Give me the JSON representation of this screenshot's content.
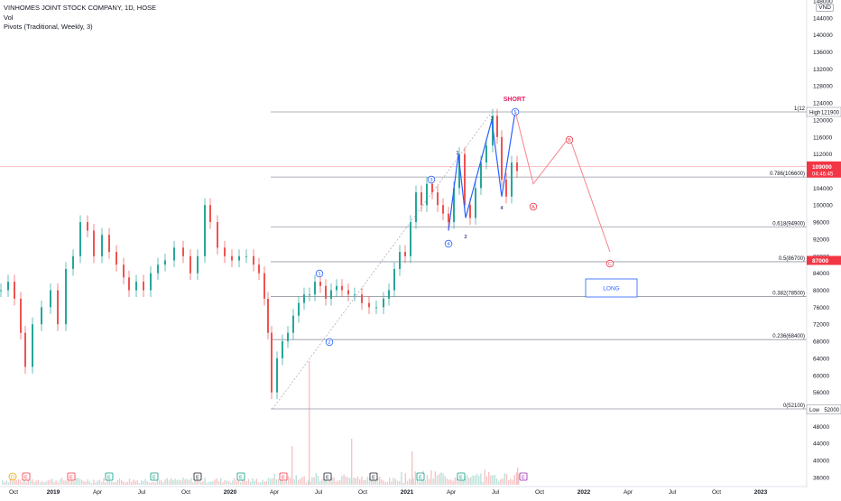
{
  "header": {
    "title": "VINHOMES JOINT STOCK COMPANY, 1D, HOSE",
    "vol_label": "Vol",
    "indicator_label": "Pivots (Traditional, Weekly, 3)",
    "currency": "VND"
  },
  "chart_data": {
    "type": "candlestick",
    "title": "VINHOMES JOINT STOCK COMPANY, 1D, HOSE",
    "currency": "VND",
    "y_ticks": [
      36000,
      40000,
      44000,
      48000,
      52000,
      56000,
      60000,
      64000,
      68000,
      72000,
      76000,
      80000,
      84000,
      88000,
      92000,
      96000,
      100000,
      104000,
      108000,
      112000,
      116000,
      120000,
      124000,
      128000,
      132000,
      136000,
      140000,
      144000,
      148000
    ],
    "x_ticks": [
      "Oct",
      "2019",
      "Apr",
      "Jul",
      "Oct",
      "2020",
      "Apr",
      "Jul",
      "Oct",
      "2021",
      "Apr",
      "Jul",
      "Oct",
      "2022",
      "Apr",
      "Jul",
      "Oct",
      "2023"
    ],
    "price_labels": {
      "current": "109000",
      "countdown": "04:46:45",
      "target": "87000",
      "high": "121900",
      "low": "52000",
      "high_tag": "High",
      "low_tag": "Low"
    },
    "fib_levels": [
      {
        "label": "1(12",
        "value": 121900
      },
      {
        "label": "0.786(106600)",
        "value": 106600
      },
      {
        "label": "0.618(94900)",
        "value": 94900
      },
      {
        "label": "0.5(86700)",
        "value": 86700
      },
      {
        "label": "0.382(78500)",
        "value": 78500
      },
      {
        "label": "0.236(68400)",
        "value": 68400
      },
      {
        "label": "0(52100)",
        "value": 52100
      }
    ],
    "wave_labels": {
      "circle_1": "1",
      "circle_2": "2",
      "circle_3": "3",
      "circle_4": "4",
      "circle_5": "5",
      "small_1": "1",
      "small_2": "2",
      "small_3": "3",
      "small_4": "4",
      "circle_a": "A",
      "circle_b": "B",
      "circle_c": "C"
    },
    "annotations": {
      "short": "SHORT",
      "long": "LONG"
    },
    "events": [
      "D",
      "E",
      "E",
      "E",
      "E",
      "E",
      "E",
      "E",
      "E",
      "E",
      "E",
      "E",
      "E"
    ]
  }
}
